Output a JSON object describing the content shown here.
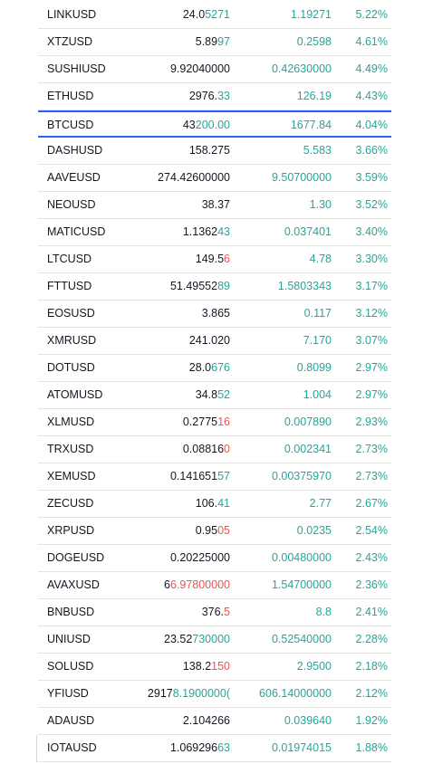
{
  "watchlist": {
    "rows": [
      {
        "symbol": "LINKUSD",
        "last_base": "24.0",
        "last_tick": "5271",
        "tick_dir": "up",
        "change": "1.19271",
        "change_pct": "5.22%"
      },
      {
        "symbol": "XTZUSD",
        "last_base": "5.89",
        "last_tick": "97",
        "tick_dir": "up",
        "change": "0.2598",
        "change_pct": "4.61%"
      },
      {
        "symbol": "SUSHIUSD",
        "last_base": "9.92040000",
        "last_tick": "",
        "tick_dir": "none",
        "change": "0.42630000",
        "change_pct": "4.49%"
      },
      {
        "symbol": "ETHUSD",
        "last_base": "2976.",
        "last_tick": "33",
        "tick_dir": "up",
        "change": "126.19",
        "change_pct": "4.43%"
      },
      {
        "symbol": "BTCUSD",
        "last_base": "43",
        "last_tick": "200.00",
        "tick_dir": "up",
        "change": "1677.84",
        "change_pct": "4.04%",
        "selected": true
      },
      {
        "symbol": "DASHUSD",
        "last_base": "158.275",
        "last_tick": "",
        "tick_dir": "none",
        "change": "5.583",
        "change_pct": "3.66%"
      },
      {
        "symbol": "AAVEUSD",
        "last_base": "274.42600000",
        "last_tick": "",
        "tick_dir": "none",
        "change": "9.50700000",
        "change_pct": "3.59%"
      },
      {
        "symbol": "NEOUSD",
        "last_base": "38.37",
        "last_tick": "",
        "tick_dir": "none",
        "change": "1.30",
        "change_pct": "3.52%"
      },
      {
        "symbol": "MATICUSD",
        "last_base": "1.1362",
        "last_tick": "43",
        "tick_dir": "up",
        "change": "0.037401",
        "change_pct": "3.40%"
      },
      {
        "symbol": "LTCUSD",
        "last_base": "149.5",
        "last_tick": "6",
        "tick_dir": "down",
        "change": "4.78",
        "change_pct": "3.30%"
      },
      {
        "symbol": "FTTUSD",
        "last_base": "51.49552",
        "last_tick": "89",
        "tick_dir": "up",
        "change": "1.5803343",
        "change_pct": "3.17%"
      },
      {
        "symbol": "EOSUSD",
        "last_base": "3.865",
        "last_tick": "",
        "tick_dir": "none",
        "change": "0.117",
        "change_pct": "3.12%"
      },
      {
        "symbol": "XMRUSD",
        "last_base": "241.020",
        "last_tick": "",
        "tick_dir": "none",
        "change": "7.170",
        "change_pct": "3.07%"
      },
      {
        "symbol": "DOTUSD",
        "last_base": "28.0",
        "last_tick": "676",
        "tick_dir": "up",
        "change": "0.8099",
        "change_pct": "2.97%"
      },
      {
        "symbol": "ATOMUSD",
        "last_base": "34.8",
        "last_tick": "52",
        "tick_dir": "up",
        "change": "1.004",
        "change_pct": "2.97%"
      },
      {
        "symbol": "XLMUSD",
        "last_base": "0.2775",
        "last_tick": "16",
        "tick_dir": "down",
        "change": "0.007890",
        "change_pct": "2.93%"
      },
      {
        "symbol": "TRXUSD",
        "last_base": "0.08816",
        "last_tick": "0",
        "tick_dir": "down",
        "change": "0.002341",
        "change_pct": "2.73%"
      },
      {
        "symbol": "XEMUSD",
        "last_base": "0.141651",
        "last_tick": "57",
        "tick_dir": "up",
        "change": "0.00375970",
        "change_pct": "2.73%"
      },
      {
        "symbol": "ZECUSD",
        "last_base": "106.",
        "last_tick": "41",
        "tick_dir": "up",
        "change": "2.77",
        "change_pct": "2.67%"
      },
      {
        "symbol": "XRPUSD",
        "last_base": "0.95",
        "last_tick": "05",
        "tick_dir": "down",
        "change": "0.0235",
        "change_pct": "2.54%"
      },
      {
        "symbol": "DOGEUSD",
        "last_base": "0.20225000",
        "last_tick": "",
        "tick_dir": "none",
        "change": "0.00480000",
        "change_pct": "2.43%"
      },
      {
        "symbol": "AVAXUSD",
        "last_base": "6",
        "last_tick": "6.97800000",
        "tick_dir": "down",
        "change": "1.54700000",
        "change_pct": "2.36%"
      },
      {
        "symbol": "BNBUSD",
        "last_base": "376.",
        "last_tick": "5",
        "tick_dir": "down",
        "change": "8.8",
        "change_pct": "2.41%"
      },
      {
        "symbol": "UNIUSD",
        "last_base": "23.52",
        "last_tick": "730000",
        "tick_dir": "up",
        "change": "0.52540000",
        "change_pct": "2.28%"
      },
      {
        "symbol": "SOLUSD",
        "last_base": "138.2",
        "last_tick": "150",
        "tick_dir": "down",
        "change": "2.9500",
        "change_pct": "2.18%"
      },
      {
        "symbol": "YFIUSD",
        "last_base": "2917",
        "last_tick": "8.1900000(",
        "tick_dir": "up",
        "change": "606.14000000",
        "change_pct": "2.12%"
      },
      {
        "symbol": "ADAUSD",
        "last_base": "2.104266",
        "last_tick": "",
        "tick_dir": "none",
        "change": "0.039640",
        "change_pct": "1.92%"
      },
      {
        "symbol": "IOTAUSD",
        "last_base": "1.069296",
        "last_tick": "63",
        "tick_dir": "up",
        "change": "0.01974015",
        "change_pct": "1.88%"
      }
    ]
  },
  "colors": {
    "up": "#26a69a",
    "down": "#ef5350",
    "selection": "#2962ff",
    "divider": "#e0e3eb",
    "text": "#131722"
  }
}
